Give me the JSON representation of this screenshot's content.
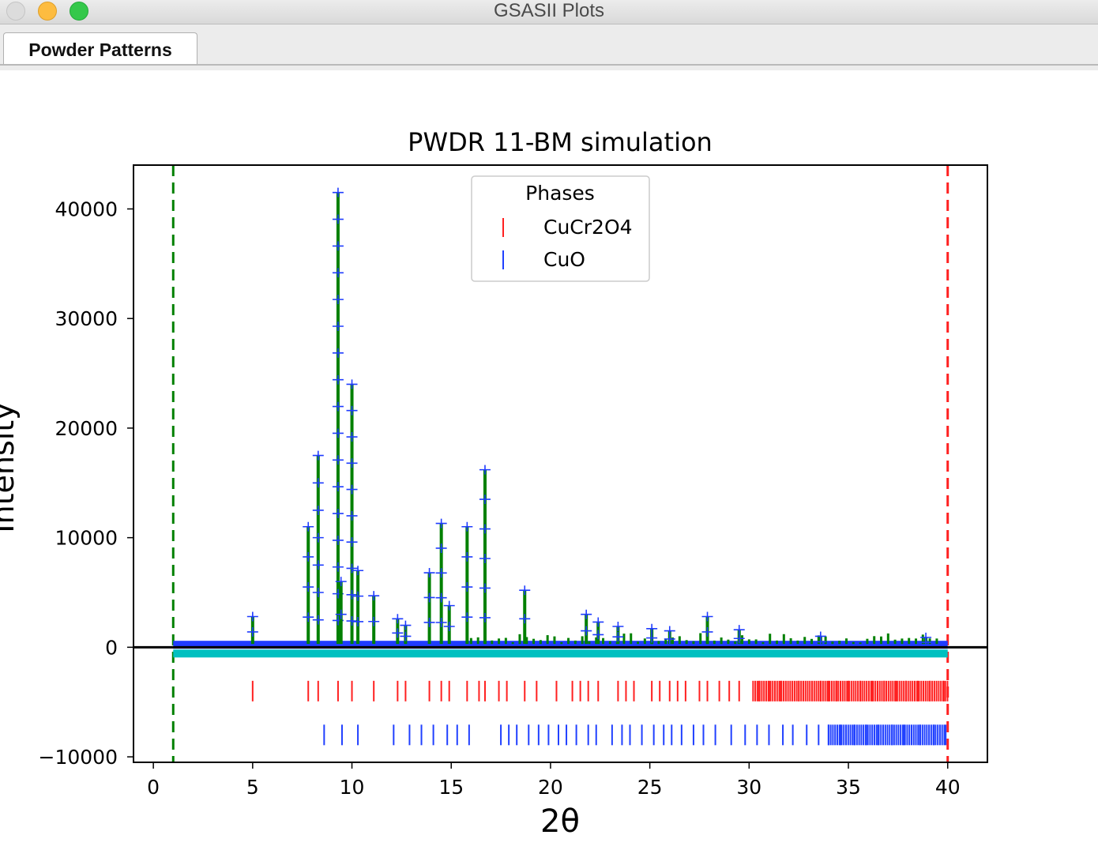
{
  "window": {
    "title": "GSASII Plots",
    "tabs": [
      {
        "label": "Powder Patterns",
        "active": true
      }
    ]
  },
  "chart_data": {
    "type": "scatter",
    "title": "PWDR 11-BM simulation",
    "xlabel": "2θ",
    "ylabel": "Intensity",
    "xlim": [
      -1,
      42
    ],
    "ylim": [
      -10500,
      44000
    ],
    "xticks": [
      "0",
      "5",
      "10",
      "15",
      "20",
      "25",
      "30",
      "35",
      "40"
    ],
    "yticks": [
      "40000",
      "30000",
      "20000",
      "10000",
      "0",
      "−10000"
    ],
    "xtick_values": [
      0,
      5,
      10,
      15,
      20,
      25,
      30,
      35,
      40
    ],
    "ytick_values": [
      40000,
      30000,
      20000,
      10000,
      0,
      -10000
    ],
    "grid": false,
    "legend": {
      "title": "Phases",
      "placement": "top-center",
      "entries": [
        {
          "name": "CuCr2O4",
          "color": "#ff2020"
        },
        {
          "name": "CuO",
          "color": "#2040ff"
        }
      ]
    },
    "limits": {
      "lower": 1.0,
      "upper": 40.0,
      "lower_color": "#008000",
      "upper_color": "#ff2020"
    },
    "colors": {
      "observed": "#1f3cff",
      "calculated": "#008000",
      "difference": "#00c0c0",
      "zero_line": "#000000"
    },
    "background_level": 300,
    "difference_level": -500,
    "peaks": [
      {
        "x": 5.0,
        "y": 2800
      },
      {
        "x": 7.8,
        "y": 11000
      },
      {
        "x": 8.3,
        "y": 17500
      },
      {
        "x": 9.3,
        "y": 41500
      },
      {
        "x": 9.45,
        "y": 6000
      },
      {
        "x": 10.0,
        "y": 24000
      },
      {
        "x": 10.3,
        "y": 7000
      },
      {
        "x": 11.1,
        "y": 4700
      },
      {
        "x": 12.3,
        "y": 2600
      },
      {
        "x": 12.7,
        "y": 2000
      },
      {
        "x": 13.9,
        "y": 6800
      },
      {
        "x": 14.5,
        "y": 11300
      },
      {
        "x": 14.9,
        "y": 3800
      },
      {
        "x": 15.8,
        "y": 11000
      },
      {
        "x": 16.7,
        "y": 16200
      },
      {
        "x": 18.7,
        "y": 5200
      },
      {
        "x": 21.8,
        "y": 3000
      },
      {
        "x": 22.4,
        "y": 2300
      },
      {
        "x": 23.4,
        "y": 1900
      },
      {
        "x": 25.1,
        "y": 1700
      },
      {
        "x": 26.0,
        "y": 1500
      },
      {
        "x": 27.9,
        "y": 2800
      },
      {
        "x": 29.5,
        "y": 1600
      },
      {
        "x": 33.6,
        "y": 1000
      },
      {
        "x": 38.9,
        "y": 900
      }
    ],
    "phase_ticks": [
      {
        "name": "CuCr2O4",
        "y": -4000,
        "positions": [
          5.0,
          7.8,
          8.3,
          9.3,
          10.0,
          11.1,
          12.3,
          12.7,
          13.9,
          14.5,
          14.9,
          15.8,
          16.4,
          16.7,
          17.4,
          17.8,
          18.7,
          19.3,
          20.3,
          21.1,
          21.5,
          21.9,
          22.4,
          23.4,
          23.8,
          24.2,
          25.1,
          25.5,
          26.0,
          26.4,
          26.8,
          27.5,
          27.9,
          28.5,
          29.0,
          29.5,
          30.5,
          31.0,
          31.6,
          32.5,
          33.6,
          34.0,
          34.4,
          35.0,
          35.6,
          36.2,
          36.8,
          37.4,
          37.9,
          38.5,
          39.1,
          39.8
        ],
        "range": [
          30.2,
          40.0
        ]
      },
      {
        "name": "CuO",
        "y": -8000,
        "positions": [
          8.6,
          9.5,
          10.3,
          12.1,
          12.9,
          13.5,
          14.1,
          14.8,
          15.3,
          15.9,
          17.5,
          17.9,
          18.3,
          18.9,
          19.4,
          19.9,
          20.4,
          20.8,
          21.3,
          21.9,
          22.3,
          23.1,
          23.6,
          24.0,
          24.6,
          25.2,
          25.7,
          26.1,
          26.6,
          27.2,
          27.7,
          28.3,
          29.1,
          29.8,
          30.4,
          31.0,
          31.7,
          32.2,
          32.9,
          33.5,
          34.0,
          34.6,
          35.3,
          35.9,
          36.5,
          37.2,
          37.8,
          38.6,
          39.3,
          39.9
        ],
        "range": [
          34.0,
          39.9
        ]
      }
    ]
  }
}
